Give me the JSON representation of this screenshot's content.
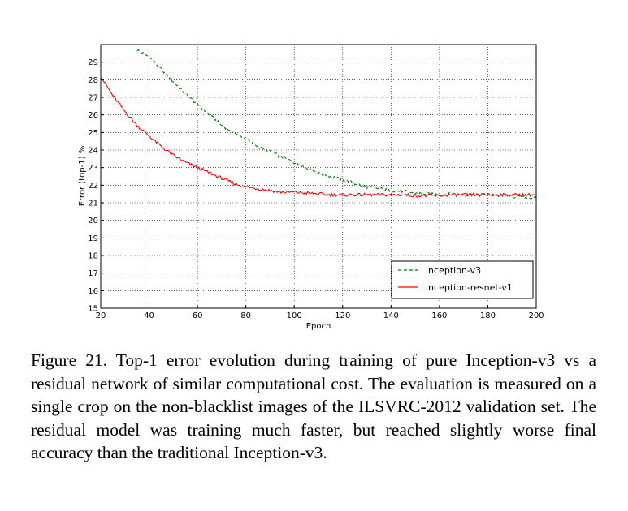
{
  "chart_data": {
    "type": "line",
    "title": "",
    "xlabel": "Epoch",
    "ylabel": "Error (top-1) %",
    "xlim": [
      20,
      200
    ],
    "ylim": [
      15,
      30
    ],
    "x_ticks": [
      20,
      40,
      60,
      80,
      100,
      120,
      140,
      160,
      180,
      200
    ],
    "y_ticks": [
      15,
      16,
      17,
      18,
      19,
      20,
      21,
      22,
      23,
      24,
      25,
      26,
      27,
      28,
      29
    ],
    "grid": true,
    "legend_position": "bottom-right",
    "series": [
      {
        "name": "inception-v3",
        "color": "#008000",
        "style": "dashed",
        "x": [
          35,
          40,
          45,
          50,
          55,
          60,
          65,
          70,
          75,
          80,
          85,
          90,
          95,
          100,
          105,
          110,
          115,
          120,
          125,
          130,
          135,
          140,
          145,
          150,
          155,
          160,
          165,
          170,
          175,
          180,
          185,
          190,
          195,
          200
        ],
        "y": [
          29.7,
          29.3,
          28.6,
          27.9,
          27.2,
          26.6,
          26.0,
          25.4,
          25.0,
          24.6,
          24.2,
          23.9,
          23.6,
          23.3,
          23.0,
          22.7,
          22.5,
          22.3,
          22.1,
          21.9,
          21.8,
          21.7,
          21.65,
          21.55,
          21.5,
          21.45,
          21.5,
          21.45,
          21.4,
          21.45,
          21.4,
          21.35,
          21.3,
          21.25
        ]
      },
      {
        "name": "inception-resnet-v1",
        "color": "#ff0000",
        "style": "solid",
        "x": [
          20,
          25,
          30,
          35,
          40,
          45,
          50,
          55,
          60,
          65,
          70,
          75,
          80,
          85,
          90,
          95,
          100,
          105,
          110,
          115,
          120,
          125,
          130,
          135,
          140,
          145,
          150,
          155,
          160,
          165,
          170,
          175,
          180,
          185,
          190,
          195,
          200
        ],
        "y": [
          28.2,
          27.1,
          26.2,
          25.4,
          24.8,
          24.2,
          23.7,
          23.3,
          23.0,
          22.7,
          22.4,
          22.1,
          21.9,
          21.8,
          21.7,
          21.6,
          21.6,
          21.55,
          21.5,
          21.45,
          21.45,
          21.45,
          21.45,
          21.45,
          21.45,
          21.45,
          21.4,
          21.4,
          21.4,
          21.45,
          21.45,
          21.45,
          21.45,
          21.45,
          21.45,
          21.45,
          21.45
        ]
      }
    ]
  },
  "caption": {
    "text": "Figure 21. Top-1 error evolution during training of pure Inception-v3 vs a residual network of similar computational cost. The evaluation is measured on a single crop on the non-blacklist images of the ILSVRC-2012 validation set. The residual model was training much faster, but reached slightly worse final accuracy than the traditional Inception-v3."
  }
}
